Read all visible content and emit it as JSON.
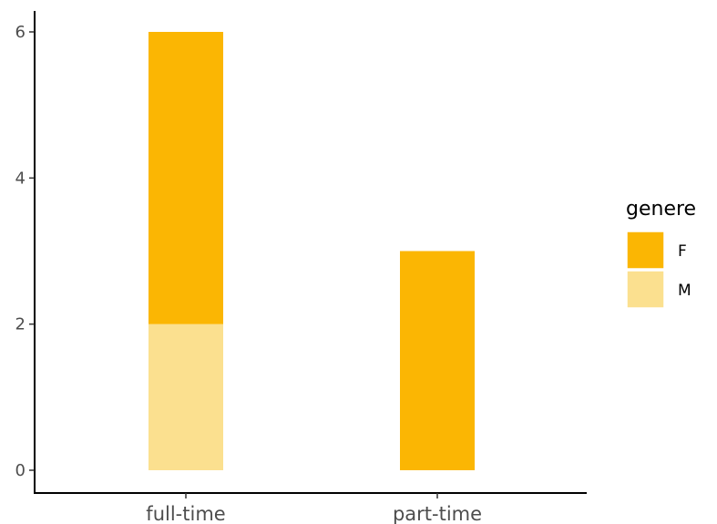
{
  "chart_data": {
    "type": "bar",
    "stacked": true,
    "categories": [
      "full-time",
      "part-time"
    ],
    "series": [
      {
        "name": "F",
        "values": [
          4,
          3
        ],
        "color": "#FBB603"
      },
      {
        "name": "M",
        "values": [
          2,
          0
        ],
        "color": "#FBE08F"
      }
    ],
    "yticks": [
      0,
      2,
      4,
      6
    ],
    "ylim": [
      -0.3,
      6.3
    ],
    "xlabel": "",
    "ylabel": "",
    "grid": false,
    "legend": {
      "title": "genere",
      "position": "right"
    }
  }
}
